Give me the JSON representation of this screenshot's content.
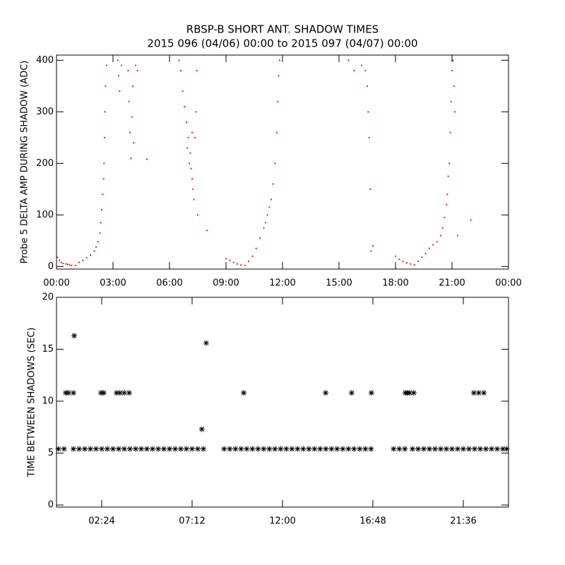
{
  "chart_data": [
    {
      "type": "scatter",
      "marker": "dot",
      "color": "#ff2000",
      "title": "RBSP-B SHORT ANT. SHADOW TIMES",
      "subtitle": "2015 096 (04/06) 00:00 to 2015 097 (04/07) 00:00",
      "y_label": "Probe 5 DELTA AMP DURING SHADOW (ADC)",
      "xlim": [
        0,
        24
      ],
      "ylim": [
        -5,
        410
      ],
      "xticks": [
        {
          "value": 0,
          "label": "00:00"
        },
        {
          "value": 3,
          "label": "03:00"
        },
        {
          "value": 6,
          "label": "06:00"
        },
        {
          "value": 9,
          "label": "09:00"
        },
        {
          "value": 12,
          "label": "12:00"
        },
        {
          "value": 15,
          "label": "15:00"
        },
        {
          "value": 18,
          "label": "18:00"
        },
        {
          "value": 21,
          "label": "21:00"
        },
        {
          "value": 24,
          "label": "00:00"
        }
      ],
      "yticks": [
        0,
        100,
        200,
        300,
        400
      ],
      "x": [
        0.05,
        0.15,
        0.25,
        0.35,
        0.5,
        0.6,
        0.7,
        0.8,
        1.0,
        1.2,
        1.4,
        1.6,
        1.8,
        2.0,
        2.1,
        2.2,
        2.3,
        2.35,
        2.4,
        2.45,
        2.5,
        2.52,
        2.55,
        2.58,
        2.6,
        2.65,
        3.25,
        3.3,
        3.35,
        3.45,
        3.8,
        3.85,
        3.9,
        3.95,
        4.0,
        4.05,
        4.1,
        4.2,
        4.3,
        4.8,
        6.5,
        6.6,
        6.7,
        6.8,
        6.9,
        6.95,
        7.0,
        7.05,
        7.1,
        7.15,
        7.2,
        7.2,
        7.25,
        7.3,
        7.35,
        7.4,
        7.45,
        7.5,
        8.0,
        9.0,
        9.2,
        9.4,
        9.6,
        9.8,
        10.0,
        10.2,
        10.4,
        10.6,
        10.8,
        11.0,
        11.1,
        11.2,
        11.3,
        11.4,
        11.5,
        11.6,
        11.7,
        11.75,
        11.8,
        11.85,
        15.5,
        15.8,
        16.2,
        16.4,
        16.5,
        16.55,
        16.6,
        16.65,
        16.7,
        16.8,
        18.0,
        18.2,
        18.4,
        18.6,
        18.8,
        19.0,
        19.2,
        19.4,
        19.6,
        19.8,
        20.0,
        20.2,
        20.4,
        20.5,
        20.6,
        20.7,
        20.75,
        20.8,
        20.85,
        20.9,
        20.95,
        21.0,
        21.05,
        21.1,
        21.15,
        21.3,
        22.0
      ],
      "values": [
        18,
        12,
        8,
        6,
        5,
        4,
        3,
        2,
        2,
        8,
        12,
        17,
        22,
        30,
        38,
        48,
        65,
        85,
        110,
        140,
        170,
        200,
        250,
        300,
        350,
        390,
        400,
        370,
        340,
        390,
        380,
        320,
        260,
        210,
        290,
        350,
        240,
        390,
        380,
        208,
        400,
        380,
        340,
        310,
        280,
        230,
        250,
        200,
        220,
        190,
        170,
        260,
        150,
        130,
        250,
        300,
        380,
        100,
        70,
        15,
        12,
        8,
        5,
        3,
        2,
        10,
        20,
        35,
        55,
        75,
        85,
        100,
        115,
        130,
        160,
        200,
        260,
        320,
        370,
        400,
        400,
        380,
        390,
        380,
        350,
        300,
        250,
        150,
        30,
        40,
        20,
        14,
        10,
        7,
        5,
        3,
        10,
        18,
        25,
        35,
        42,
        48,
        60,
        75,
        95,
        120,
        140,
        175,
        200,
        260,
        320,
        380,
        400,
        350,
        300,
        60,
        90
      ]
    },
    {
      "type": "scatter",
      "marker": "asterisk",
      "color": "#000000",
      "y_label": "TIME BETWEEN SHADOWS (SEC)",
      "xlim": [
        0,
        24
      ],
      "ylim": [
        -0.2,
        20
      ],
      "xticks": [
        {
          "value": 2.4,
          "label": "02:24"
        },
        {
          "value": 7.2,
          "label": "07:12"
        },
        {
          "value": 12,
          "label": "12:00"
        },
        {
          "value": 16.8,
          "label": "16:48"
        },
        {
          "value": 21.6,
          "label": "21:36"
        }
      ],
      "yticks": [
        0,
        5,
        10,
        15,
        20
      ],
      "x": [
        0.1,
        0.4,
        0.9,
        1.2,
        1.5,
        1.8,
        2.1,
        2.4,
        2.7,
        3.0,
        3.3,
        3.6,
        3.9,
        4.2,
        4.5,
        4.8,
        5.1,
        5.4,
        5.7,
        6.0,
        6.3,
        6.6,
        6.9,
        7.2,
        7.5,
        7.8,
        8.9,
        9.2,
        9.5,
        9.8,
        10.1,
        10.4,
        10.7,
        11.0,
        11.3,
        11.6,
        11.9,
        12.2,
        12.5,
        12.8,
        13.1,
        13.4,
        13.7,
        14.0,
        14.3,
        14.6,
        14.9,
        15.2,
        15.5,
        15.8,
        16.1,
        16.4,
        16.7,
        17.9,
        18.2,
        18.5,
        18.9,
        19.2,
        19.5,
        19.8,
        20.1,
        20.4,
        20.7,
        21.0,
        21.3,
        21.6,
        21.9,
        22.2,
        22.5,
        22.8,
        23.1,
        23.4,
        23.7,
        23.9,
        0.49,
        0.64,
        0.9,
        2.36,
        2.51,
        3.19,
        3.37,
        3.6,
        3.86,
        9.94,
        14.29,
        15.67,
        16.72,
        18.52,
        18.64,
        18.75,
        18.97,
        22.16,
        22.42,
        22.69,
        0.94,
        7.95,
        7.72
      ],
      "values": [
        5.4,
        5.4,
        5.4,
        5.4,
        5.4,
        5.4,
        5.4,
        5.4,
        5.4,
        5.4,
        5.4,
        5.4,
        5.4,
        5.4,
        5.4,
        5.4,
        5.4,
        5.4,
        5.4,
        5.4,
        5.4,
        5.4,
        5.4,
        5.4,
        5.4,
        5.4,
        5.4,
        5.4,
        5.4,
        5.4,
        5.4,
        5.4,
        5.4,
        5.4,
        5.4,
        5.4,
        5.4,
        5.4,
        5.4,
        5.4,
        5.4,
        5.4,
        5.4,
        5.4,
        5.4,
        5.4,
        5.4,
        5.4,
        5.4,
        5.4,
        5.4,
        5.4,
        5.4,
        5.4,
        5.4,
        5.4,
        5.4,
        5.4,
        5.4,
        5.4,
        5.4,
        5.4,
        5.4,
        5.4,
        5.4,
        5.4,
        5.4,
        5.4,
        5.4,
        5.4,
        5.4,
        5.4,
        5.4,
        5.4,
        10.8,
        10.8,
        10.8,
        10.8,
        10.8,
        10.8,
        10.8,
        10.8,
        10.8,
        10.8,
        10.8,
        10.8,
        10.8,
        10.8,
        10.8,
        10.8,
        10.8,
        10.8,
        10.8,
        10.8,
        16.3,
        15.6,
        7.3
      ]
    }
  ]
}
